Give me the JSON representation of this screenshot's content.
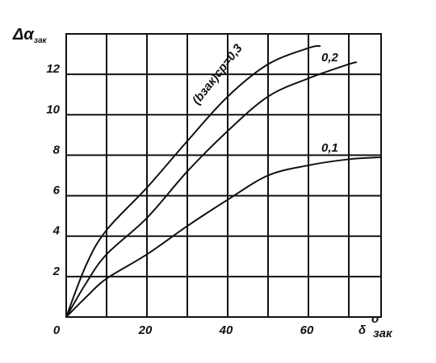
{
  "chart_data": {
    "type": "line",
    "y_label": "Δα",
    "y_label_sub": "зак",
    "x_label": "δ",
    "x_label_sup": "o",
    "x_label_sub": "зак",
    "xlim": [
      0,
      78
    ],
    "ylim": [
      0,
      14
    ],
    "xticks": [
      0,
      20,
      40,
      60
    ],
    "xgrid": [
      10,
      20,
      30,
      40,
      50,
      60,
      70
    ],
    "yticks": [
      2,
      4,
      6,
      8,
      10,
      12
    ],
    "grid": true,
    "series": [
      {
        "name": "(bзак)ср=0,3",
        "color": "#111111",
        "x": [
          0,
          5,
          10,
          20,
          30,
          40,
          50,
          60,
          63
        ],
        "values": [
          0,
          2.6,
          4.3,
          6.4,
          8.7,
          10.9,
          12.5,
          13.3,
          13.4
        ]
      },
      {
        "name": "0,2",
        "color": "#111111",
        "x": [
          0,
          5,
          10,
          20,
          30,
          40,
          50,
          60,
          70,
          72
        ],
        "values": [
          0,
          1.7,
          3.1,
          4.9,
          7.2,
          9.2,
          10.9,
          11.8,
          12.5,
          12.6
        ]
      },
      {
        "name": "0,1",
        "color": "#111111",
        "x": [
          0,
          5,
          10,
          20,
          30,
          40,
          50,
          60,
          70,
          78
        ],
        "values": [
          0,
          1.0,
          1.9,
          3.1,
          4.5,
          5.8,
          7.0,
          7.5,
          7.8,
          7.9
        ]
      }
    ]
  }
}
